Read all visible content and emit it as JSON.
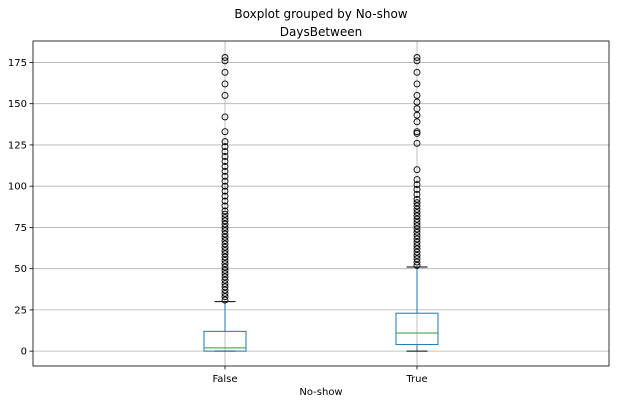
{
  "chart_data": {
    "type": "boxplot",
    "suptitle": "Boxplot grouped by No-show",
    "title": "DaysBetween",
    "xlabel": "No-show",
    "ylabel": "",
    "categories": [
      "False",
      "True"
    ],
    "ylim": [
      -9,
      188
    ],
    "yticks": [
      0,
      25,
      50,
      75,
      100,
      125,
      150,
      175
    ],
    "grid": true,
    "colors": {
      "box": "#1f77b4",
      "median": "#2ca02c",
      "whisker": "#1f77b4",
      "cap": "#000000",
      "grid": "#b0b0b0",
      "flier": "#000000"
    },
    "boxes": [
      {
        "category": "False",
        "q1": 0,
        "median": 2,
        "q3": 12,
        "whisker_low": 0,
        "whisker_high": 30,
        "fliers": [
          31,
          33,
          35,
          37,
          39,
          41,
          43,
          45,
          47,
          49,
          51,
          53,
          55,
          57,
          59,
          61,
          63,
          65,
          67,
          69,
          71,
          73,
          75,
          77,
          79,
          81,
          83,
          85,
          88,
          91,
          94,
          97,
          100,
          103,
          106,
          109,
          112,
          115,
          118,
          121,
          124,
          127,
          133,
          142,
          155,
          162,
          169,
          176,
          178
        ]
      },
      {
        "category": "True",
        "q1": 4,
        "median": 11,
        "q3": 23,
        "whisker_low": 0,
        "whisker_high": 51,
        "fliers": [
          52,
          54,
          56,
          58,
          60,
          62,
          64,
          66,
          68,
          70,
          72,
          74,
          76,
          78,
          80,
          82,
          84,
          86,
          88,
          90,
          92,
          95,
          98,
          101,
          104,
          110,
          126,
          132,
          133,
          139,
          143,
          147,
          151,
          155,
          162,
          169,
          176,
          178
        ]
      }
    ]
  }
}
